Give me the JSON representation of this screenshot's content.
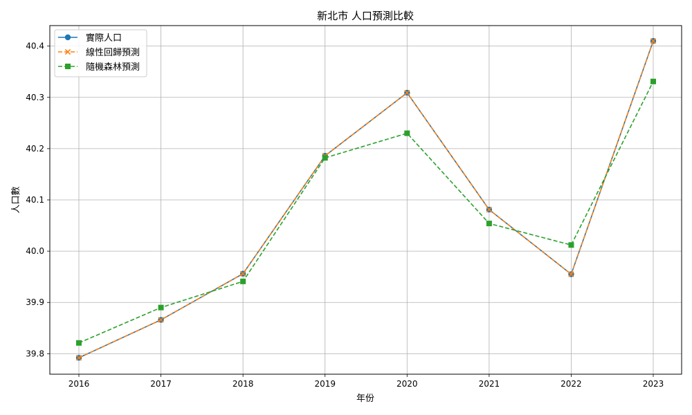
{
  "chart_data": {
    "type": "line",
    "title": "新北市 人口預測比較",
    "xlabel": "年份",
    "ylabel": "人口數",
    "categories": [
      "2016",
      "2017",
      "2018",
      "2019",
      "2020",
      "2021",
      "2022",
      "2023"
    ],
    "ylim": [
      39.76,
      40.44
    ],
    "yticks": [
      "39.8",
      "39.9",
      "40.0",
      "40.1",
      "40.2",
      "40.3",
      "40.4"
    ],
    "grid": true,
    "legend_position": "top-left",
    "series": [
      {
        "name": "實際人口",
        "values": [
          39.792,
          39.866,
          39.956,
          40.186,
          40.309,
          40.081,
          39.955,
          40.41
        ],
        "color": "#1f77b4",
        "linestyle": "solid",
        "marker": "circle"
      },
      {
        "name": "線性回歸預測",
        "values": [
          39.792,
          39.866,
          39.956,
          40.186,
          40.309,
          40.081,
          39.955,
          40.41
        ],
        "color": "#ff7f0e",
        "linestyle": "dashed",
        "marker": "x"
      },
      {
        "name": "隨機森林預測",
        "values": [
          39.821,
          39.89,
          39.941,
          40.182,
          40.23,
          40.054,
          40.012,
          40.331
        ],
        "color": "#2ca02c",
        "linestyle": "dashed",
        "marker": "square"
      }
    ]
  }
}
